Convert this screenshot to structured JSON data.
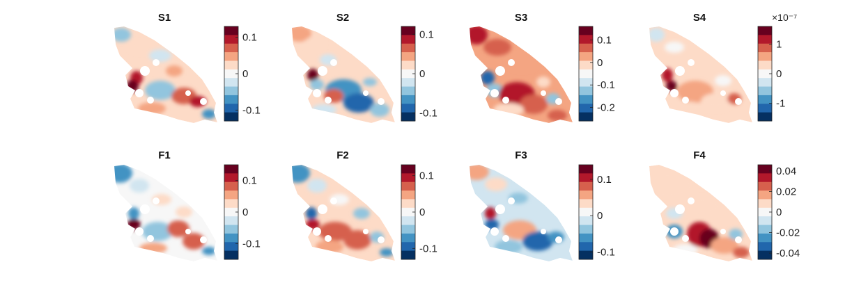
{
  "chart_data": [
    {
      "type": "heatmap",
      "title": "S1",
      "colormap": "red-white-blue diverging",
      "clim": [
        -0.13,
        0.13
      ],
      "colorbar_ticks": [
        {
          "value": 0.1,
          "label": "0.1"
        },
        {
          "value": 0,
          "label": "0"
        },
        {
          "value": -0.1,
          "label": "-0.1"
        }
      ],
      "colorbar_exponent": ""
    },
    {
      "type": "heatmap",
      "title": "S2",
      "colormap": "red-white-blue diverging",
      "clim": [
        -0.12,
        0.12
      ],
      "colorbar_ticks": [
        {
          "value": 0.1,
          "label": "0.1"
        },
        {
          "value": 0,
          "label": "0"
        },
        {
          "value": -0.1,
          "label": "-0.1"
        }
      ],
      "colorbar_exponent": ""
    },
    {
      "type": "heatmap",
      "title": "S3",
      "colormap": "red-white-blue diverging",
      "clim": [
        -0.26,
        0.16
      ],
      "colorbar_ticks": [
        {
          "value": 0.1,
          "label": "0.1"
        },
        {
          "value": 0,
          "label": "0"
        },
        {
          "value": -0.1,
          "label": "-0.1"
        },
        {
          "value": -0.2,
          "label": "-0.2"
        }
      ],
      "colorbar_exponent": ""
    },
    {
      "type": "heatmap",
      "title": "S4",
      "colormap": "red-white-blue diverging",
      "clim": [
        -1.6,
        1.6
      ],
      "colorbar_ticks": [
        {
          "value": 1,
          "label": "1"
        },
        {
          "value": 0,
          "label": "0"
        },
        {
          "value": -1,
          "label": "-1"
        }
      ],
      "colorbar_exponent": "×10⁻⁷"
    },
    {
      "type": "heatmap",
      "title": "F1",
      "colormap": "red-white-blue diverging",
      "clim": [
        -0.15,
        0.15
      ],
      "colorbar_ticks": [
        {
          "value": 0.1,
          "label": "0.1"
        },
        {
          "value": 0,
          "label": "0"
        },
        {
          "value": -0.1,
          "label": "-0.1"
        }
      ],
      "colorbar_exponent": ""
    },
    {
      "type": "heatmap",
      "title": "F2",
      "colormap": "red-white-blue diverging",
      "clim": [
        -0.13,
        0.13
      ],
      "colorbar_ticks": [
        {
          "value": 0.1,
          "label": "0.1"
        },
        {
          "value": 0,
          "label": "0"
        },
        {
          "value": -0.1,
          "label": "-0.1"
        }
      ],
      "colorbar_exponent": ""
    },
    {
      "type": "heatmap",
      "title": "F3",
      "colormap": "red-white-blue diverging",
      "clim": [
        -0.12,
        0.14
      ],
      "colorbar_ticks": [
        {
          "value": 0.1,
          "label": "0.1"
        },
        {
          "value": 0,
          "label": "0"
        },
        {
          "value": -0.1,
          "label": "-0.1"
        }
      ],
      "colorbar_exponent": ""
    },
    {
      "type": "heatmap",
      "title": "F4",
      "colormap": "red-white-blue diverging",
      "clim": [
        -0.046,
        0.046
      ],
      "colorbar_ticks": [
        {
          "value": 0.04,
          "label": "0.04"
        },
        {
          "value": 0.02,
          "label": "0.02"
        },
        {
          "value": 0,
          "label": "0"
        },
        {
          "value": -0.02,
          "label": "-0.02"
        },
        {
          "value": -0.04,
          "label": "-0.04"
        }
      ],
      "colorbar_exponent": ""
    }
  ],
  "colors": {
    "colormap": [
      "#053061",
      "#2166ac",
      "#4393c3",
      "#92c5de",
      "#d1e5f0",
      "#f7f7f7",
      "#fddbc7",
      "#f4a582",
      "#d6604d",
      "#b2182b",
      "#67001f"
    ]
  }
}
